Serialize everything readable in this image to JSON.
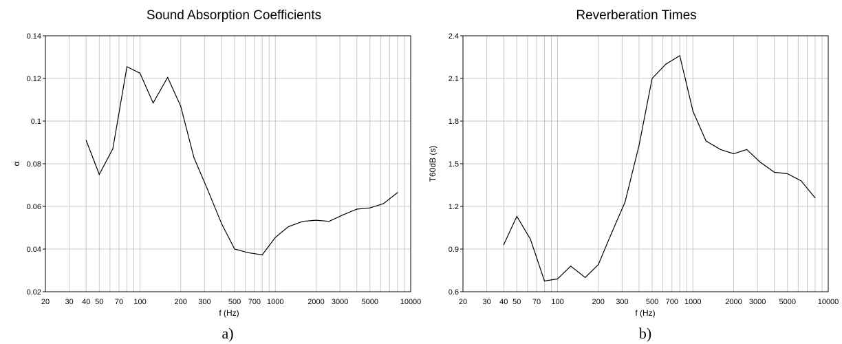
{
  "chart_data": [
    {
      "type": "line",
      "title": "Sound Absorption Coefficients",
      "xlabel": "f (Hz)",
      "ylabel": "α",
      "panel_label": "a)",
      "xscale": "log",
      "xlim": [
        20,
        10000
      ],
      "ylim": [
        0.02,
        0.14
      ],
      "grid": true,
      "x_tick_labels": [
        "20",
        "30",
        "40",
        "50",
        "70",
        "100",
        "200",
        "300",
        "500",
        "700",
        "1000",
        "2000",
        "3000",
        "5000",
        "10000"
      ],
      "y_tick_labels": [
        "0.02",
        "0.04",
        "0.06",
        "0.08",
        "0.1",
        "0.12",
        "0.14"
      ],
      "x": [
        40,
        50,
        63,
        80,
        100,
        125,
        160,
        200,
        250,
        315,
        400,
        500,
        630,
        800,
        1000,
        1250,
        1600,
        2000,
        2500,
        3150,
        4000,
        5000,
        6300,
        8000
      ],
      "series": [
        {
          "values": [
            0.091,
            0.075,
            0.087,
            0.1255,
            0.1225,
            0.1085,
            0.1205,
            0.107,
            0.083,
            0.068,
            0.052,
            0.04,
            0.0383,
            0.0373,
            0.0455,
            0.0505,
            0.053,
            0.0535,
            0.053,
            0.056,
            0.0587,
            0.0593,
            0.0613,
            0.0665
          ]
        }
      ]
    },
    {
      "type": "line",
      "title": "Reverberation Times",
      "xlabel": "f (Hz)",
      "ylabel": "T60dB (s)",
      "panel_label": "b)",
      "xscale": "log",
      "xlim": [
        20,
        10000
      ],
      "ylim": [
        0.6,
        2.4
      ],
      "grid": true,
      "x_tick_labels": [
        "20",
        "30",
        "40",
        "50",
        "70",
        "100",
        "200",
        "300",
        "500",
        "700",
        "1000",
        "2000",
        "3000",
        "5000",
        "10000"
      ],
      "y_tick_labels": [
        "0.6",
        "0.9",
        "1.2",
        "1.5",
        "1.8",
        "2.1",
        "2.4"
      ],
      "x": [
        40,
        50,
        63,
        80,
        100,
        125,
        160,
        200,
        250,
        315,
        400,
        500,
        630,
        800,
        1000,
        1250,
        1600,
        2000,
        2500,
        3150,
        4000,
        5000,
        6300,
        8000
      ],
      "series": [
        {
          "values": [
            0.93,
            1.13,
            0.97,
            0.675,
            0.69,
            0.78,
            0.7,
            0.79,
            1.01,
            1.23,
            1.63,
            2.1,
            2.2,
            2.26,
            1.87,
            1.66,
            1.6,
            1.57,
            1.6,
            1.51,
            1.44,
            1.43,
            1.38,
            1.26
          ]
        }
      ]
    }
  ]
}
